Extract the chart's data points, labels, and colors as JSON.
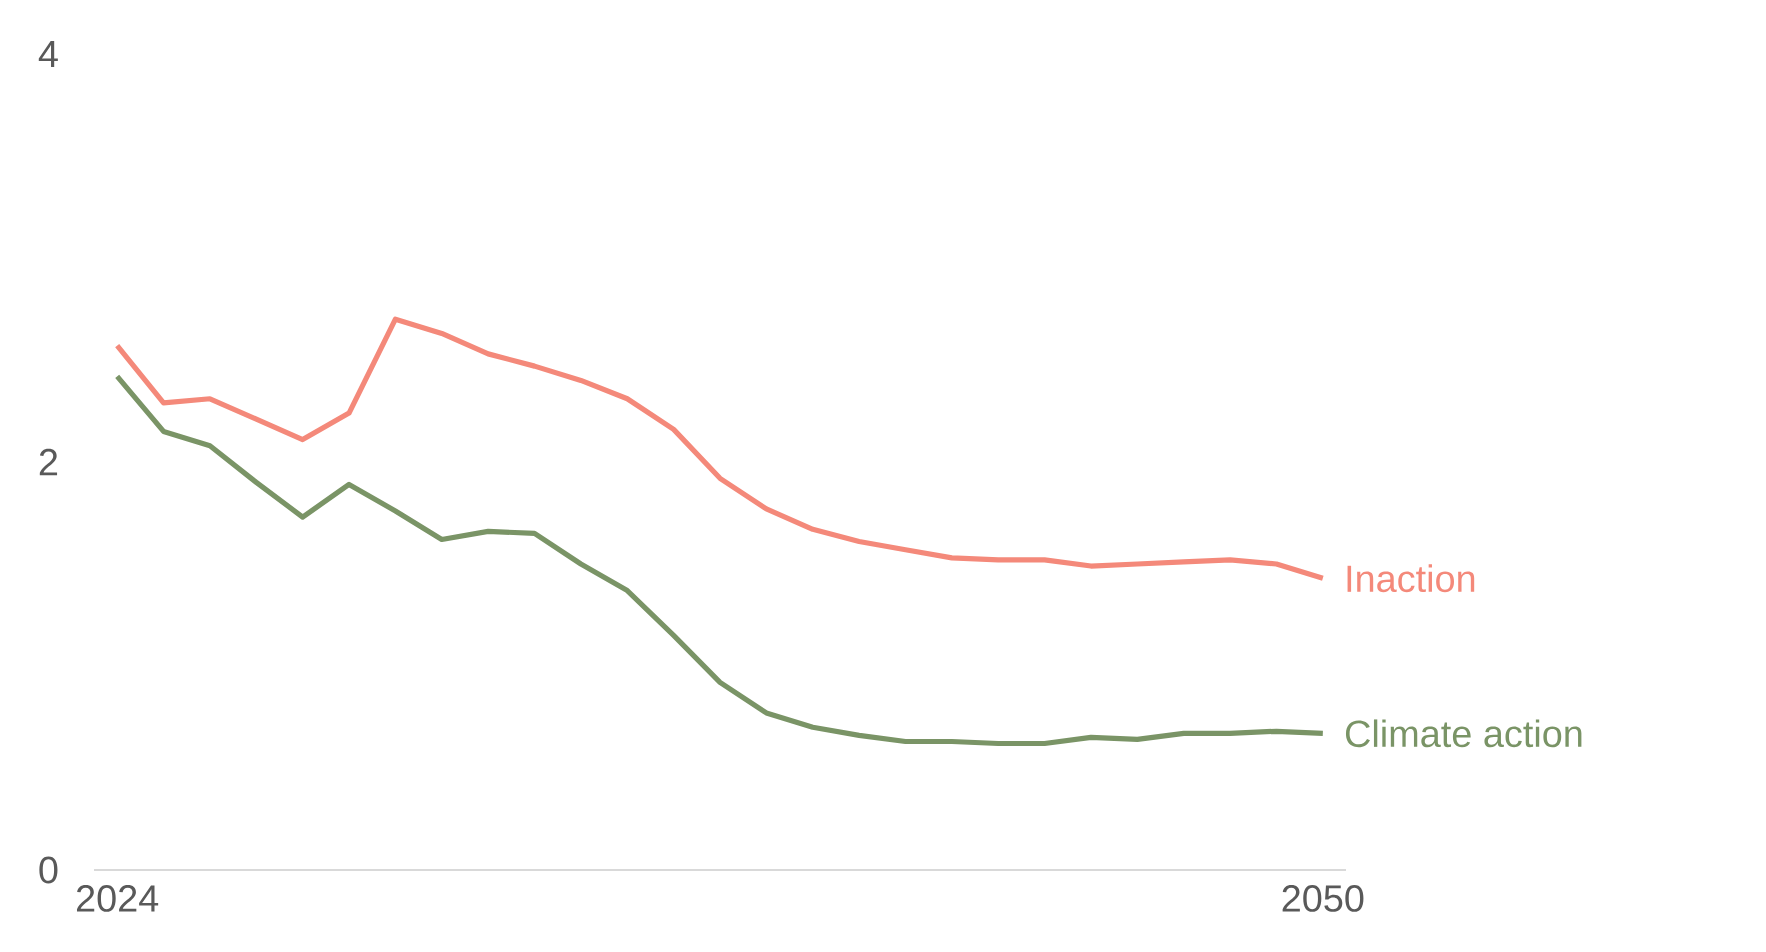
{
  "chart_data": {
    "type": "line",
    "x": [
      2024,
      2025,
      2026,
      2027,
      2028,
      2029,
      2030,
      2031,
      2032,
      2033,
      2034,
      2035,
      2036,
      2037,
      2038,
      2039,
      2040,
      2041,
      2042,
      2043,
      2044,
      2045,
      2046,
      2047,
      2048,
      2049,
      2050
    ],
    "series": [
      {
        "name": "Inaction",
        "color": "#f4897a",
        "values": [
          2.57,
          2.29,
          2.31,
          2.21,
          2.11,
          2.24,
          2.7,
          2.63,
          2.53,
          2.47,
          2.4,
          2.31,
          2.16,
          1.92,
          1.77,
          1.67,
          1.61,
          1.57,
          1.53,
          1.52,
          1.52,
          1.49,
          1.5,
          1.51,
          1.52,
          1.5,
          1.43
        ]
      },
      {
        "name": "Climate action",
        "color": "#7a9466",
        "values": [
          2.42,
          2.15,
          2.08,
          1.9,
          1.73,
          1.89,
          1.76,
          1.62,
          1.66,
          1.65,
          1.5,
          1.37,
          1.15,
          0.92,
          0.77,
          0.7,
          0.66,
          0.63,
          0.63,
          0.62,
          0.62,
          0.65,
          0.64,
          0.67,
          0.67,
          0.68,
          0.67
        ]
      }
    ],
    "xlim": [
      2023.5,
      2050.5
    ],
    "ylim": [
      0,
      4
    ],
    "xticks": [
      2024,
      2050
    ],
    "yticks": [
      0,
      2,
      4
    ]
  }
}
